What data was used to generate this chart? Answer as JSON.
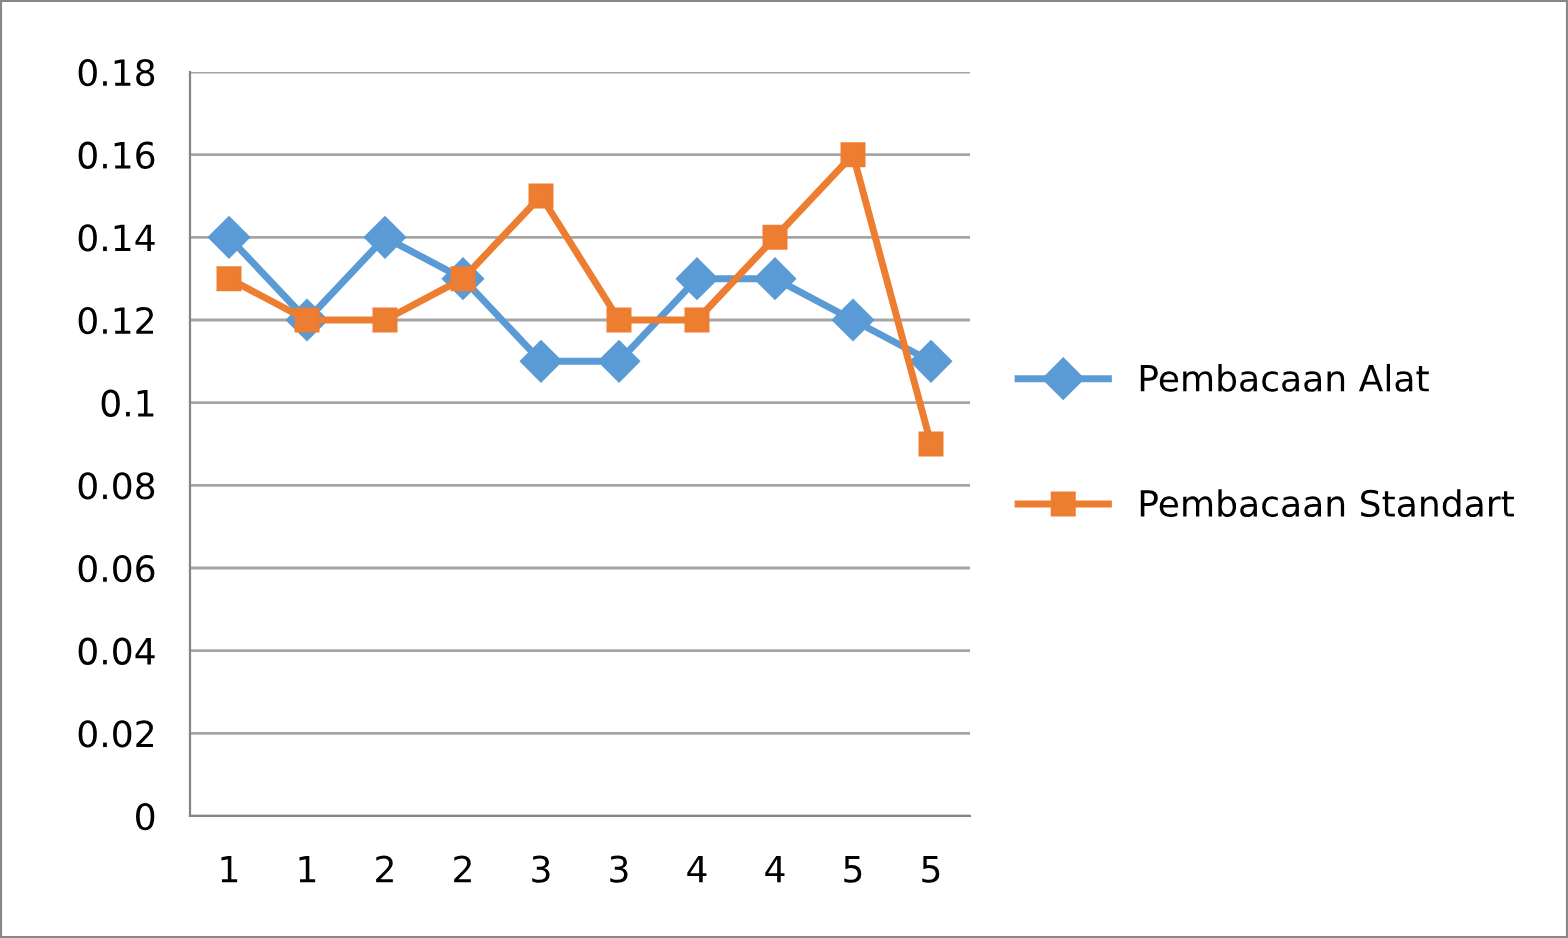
{
  "chart_data": {
    "type": "line",
    "categories": [
      "1",
      "1",
      "2",
      "2",
      "3",
      "3",
      "4",
      "4",
      "5",
      "5"
    ],
    "series": [
      {
        "name": "Pembacaan Alat",
        "color": "#5b9bd5",
        "marker": "diamond",
        "values": [
          0.14,
          0.12,
          0.14,
          0.13,
          0.11,
          0.11,
          0.13,
          0.13,
          0.12,
          0.11
        ]
      },
      {
        "name": "Pembacaan Standart",
        "color": "#ed7d31",
        "marker": "square",
        "values": [
          0.13,
          0.12,
          0.12,
          0.13,
          0.15,
          0.12,
          0.12,
          0.14,
          0.16,
          0.09
        ]
      }
    ],
    "ylim": [
      0,
      0.18
    ],
    "yticks": [
      0,
      0.02,
      0.04,
      0.06,
      0.08,
      0.1,
      0.12,
      0.14,
      0.16,
      0.18
    ],
    "grid": "y",
    "legend": "right",
    "line_style": "solid"
  }
}
